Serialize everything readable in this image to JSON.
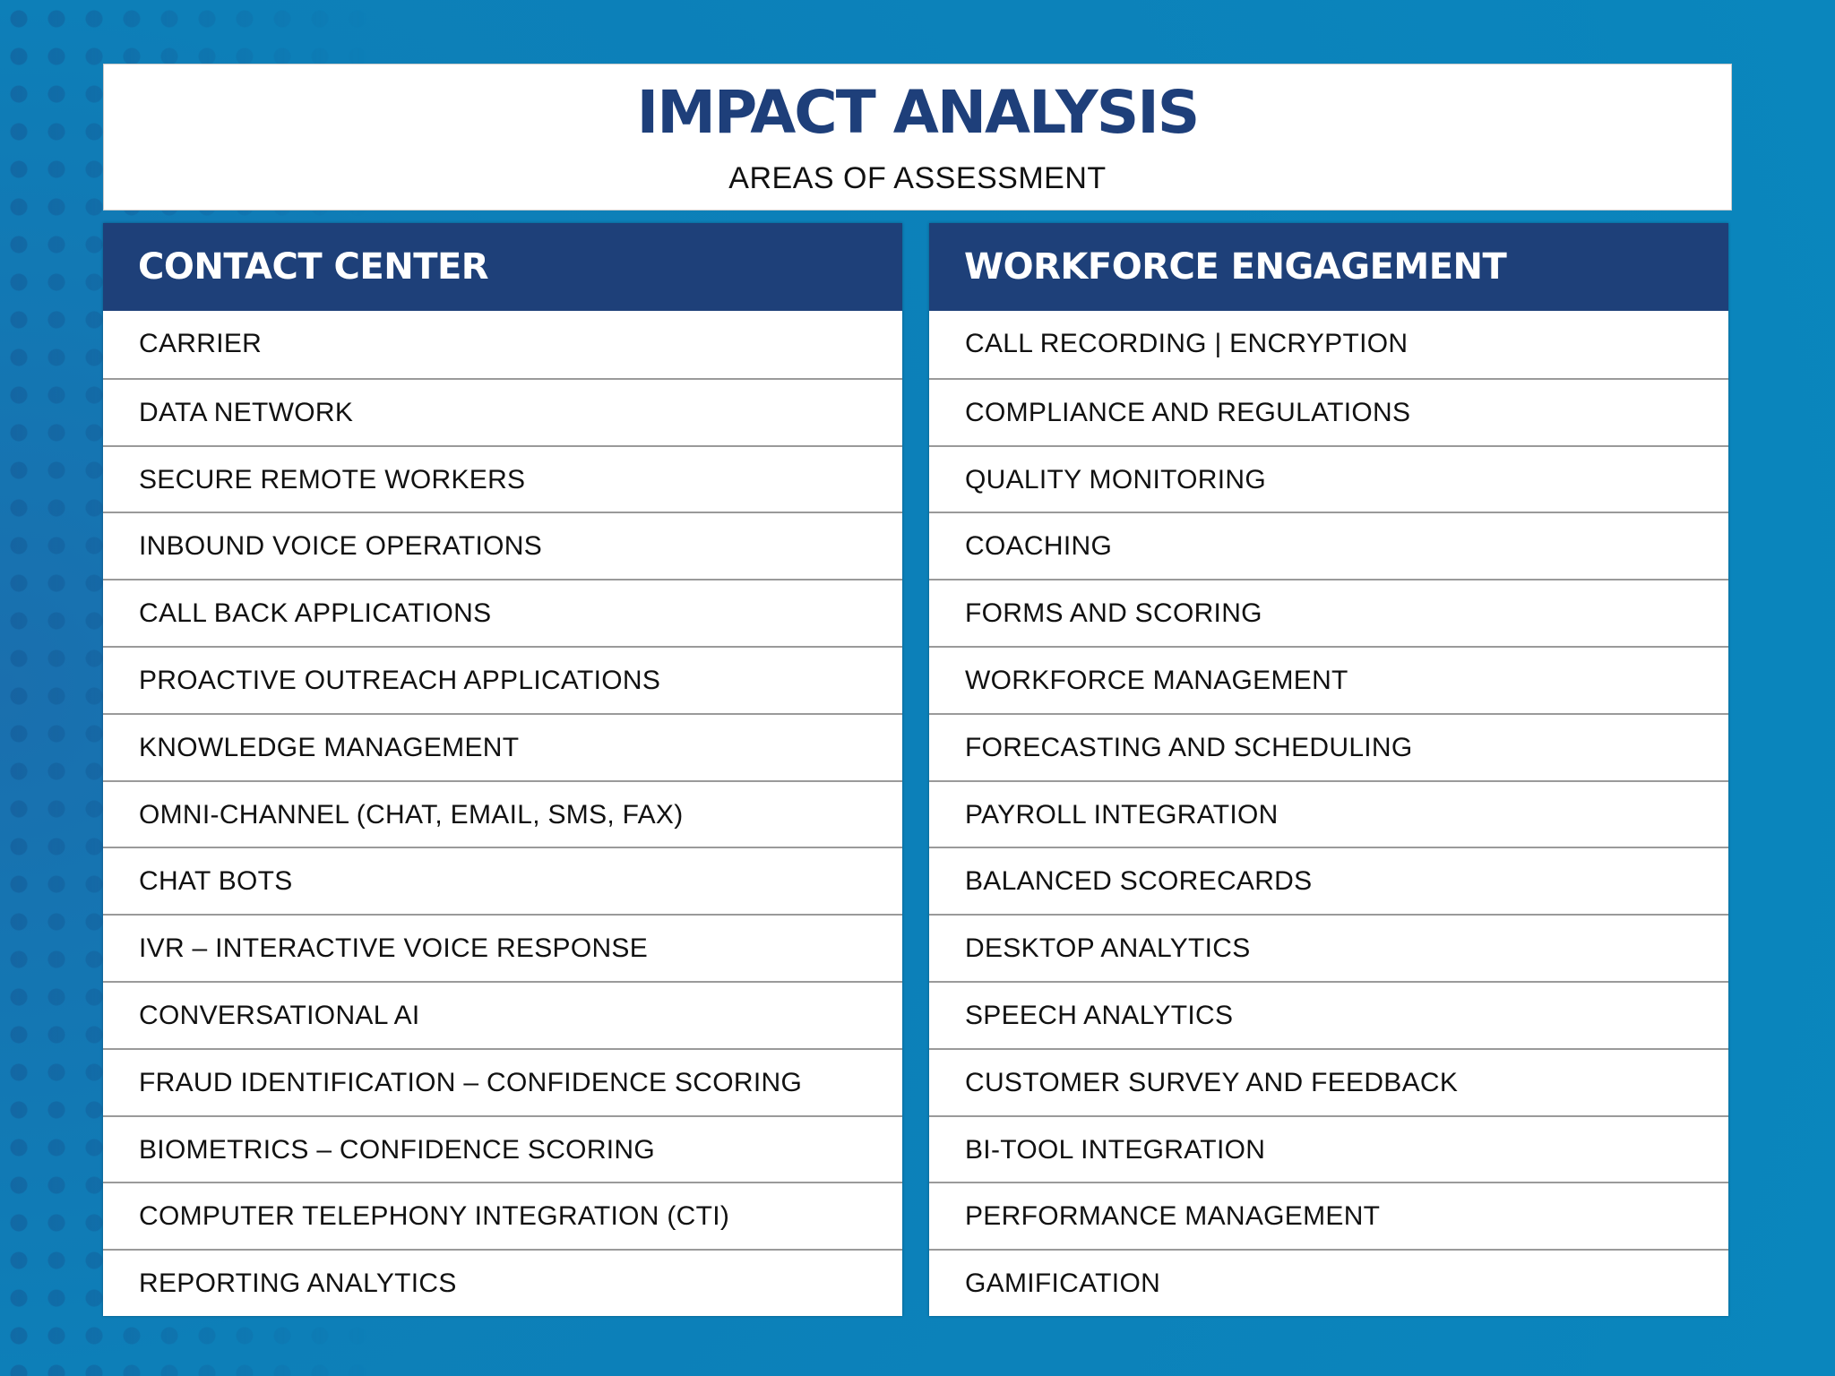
{
  "header": {
    "title": "IMPACT ANALYSIS",
    "subtitle": "AREAS OF ASSESSMENT"
  },
  "columns": [
    {
      "heading": "CONTACT CENTER",
      "items": [
        "CARRIER",
        "DATA NETWORK",
        "SECURE REMOTE WORKERS",
        "INBOUND VOICE OPERATIONS",
        "CALL BACK APPLICATIONS",
        "PROACTIVE OUTREACH APPLICATIONS",
        "KNOWLEDGE MANAGEMENT",
        "OMNI-CHANNEL (CHAT, EMAIL, SMS, FAX)",
        "CHAT BOTS",
        "IVR – INTERACTIVE VOICE RESPONSE",
        "CONVERSATIONAL AI",
        "FRAUD IDENTIFICATION – CONFIDENCE SCORING",
        "BIOMETRICS – CONFIDENCE SCORING",
        "COMPUTER TELEPHONY INTEGRATION (CTI)",
        "REPORTING ANALYTICS"
      ]
    },
    {
      "heading": "WORKFORCE ENGAGEMENT",
      "items": [
        "CALL RECORDING | ENCRYPTION",
        "COMPLIANCE AND REGULATIONS",
        "QUALITY MONITORING",
        "COACHING",
        "FORMS AND SCORING",
        "WORKFORCE MANAGEMENT",
        "FORECASTING AND SCHEDULING",
        "PAYROLL INTEGRATION",
        "BALANCED SCORECARDS",
        "DESKTOP ANALYTICS",
        "SPEECH ANALYTICS",
        "CUSTOMER SURVEY AND FEEDBACK",
        "BI-TOOL INTEGRATION",
        "PERFORMANCE MANAGEMENT",
        "GAMIFICATION"
      ]
    }
  ]
}
